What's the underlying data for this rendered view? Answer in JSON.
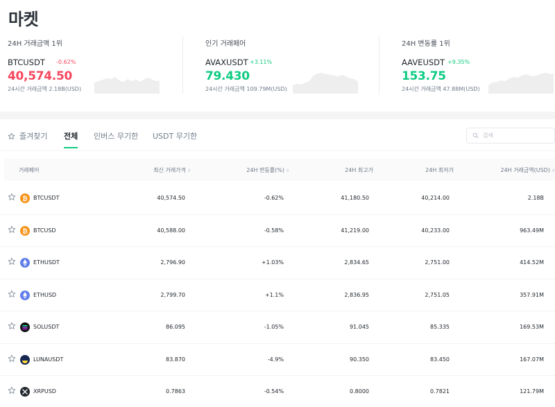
{
  "page": {
    "title": "마켓"
  },
  "cards": [
    {
      "label": "24H 거래금액 1위",
      "symbol": "BTCUSDT",
      "change": "-0.62%",
      "direction": "down",
      "price": "40,574.50",
      "volume": "24시간 거래금액 2.18B(USD)"
    },
    {
      "label": "인기 거래페어",
      "symbol": "AVAXUSDT",
      "change": "+3.11%",
      "direction": "up",
      "price": "79.430",
      "volume": "24시간 거래금액 109.79M(USD)"
    },
    {
      "label": "24H 변동률 1위",
      "symbol": "AAVEUSDT",
      "change": "+9.35%",
      "direction": "up",
      "price": "153.75",
      "volume": "24시간 거래금액 47.88M(USD)"
    }
  ],
  "tabs": {
    "favorites": "즐겨찾기",
    "all": "전체",
    "inverse": "인버스 무기한",
    "usdt": "USDT 무기한"
  },
  "search": {
    "placeholder": "검색"
  },
  "table": {
    "headers": {
      "pair": "거래페어",
      "price": "최신 거래가격",
      "change": "24H 변동률(%)",
      "high": "24H 최고가",
      "low": "24H 최저가",
      "volume": "24H 거래금액(USD)"
    },
    "rows": [
      {
        "pair": "BTCUSDT",
        "icon": "bitcoin-icon",
        "price": "40,574.50",
        "change": "-0.62%",
        "direction": "down",
        "high": "41,180.50",
        "low": "40,214.00",
        "volume": "2.18B"
      },
      {
        "pair": "BTCUSD",
        "icon": "bitcoin-icon",
        "price": "40,588.00",
        "change": "-0.58%",
        "direction": "down",
        "high": "41,219.00",
        "low": "40,233.00",
        "volume": "963.49M"
      },
      {
        "pair": "ETHUSDT",
        "icon": "ethereum-icon",
        "price": "2,796.90",
        "change": "+1.03%",
        "direction": "up",
        "high": "2,834.65",
        "low": "2,751.00",
        "volume": "414.52M"
      },
      {
        "pair": "ETHUSD",
        "icon": "ethereum-icon",
        "price": "2,799.70",
        "change": "+1.1%",
        "direction": "up",
        "high": "2,836.95",
        "low": "2,751.05",
        "volume": "357.91M"
      },
      {
        "pair": "SOLUSDT",
        "icon": "solana-icon",
        "price": "86.095",
        "change": "-1.05%",
        "direction": "down",
        "high": "91.045",
        "low": "85.335",
        "volume": "169.53M"
      },
      {
        "pair": "LUNAUSDT",
        "icon": "terra-luna-icon",
        "price": "83.870",
        "change": "-4.9%",
        "direction": "down",
        "high": "90.350",
        "low": "83.450",
        "volume": "167.07M"
      },
      {
        "pair": "XRPUSD",
        "icon": "xrp-icon",
        "price": "0.7863",
        "change": "-0.54%",
        "direction": "down",
        "high": "0.8000",
        "low": "0.7821",
        "volume": "121.79M"
      }
    ]
  },
  "colors": {
    "up": "#0ecb81",
    "down": "#f6465d",
    "accent": "#0ecb81"
  }
}
